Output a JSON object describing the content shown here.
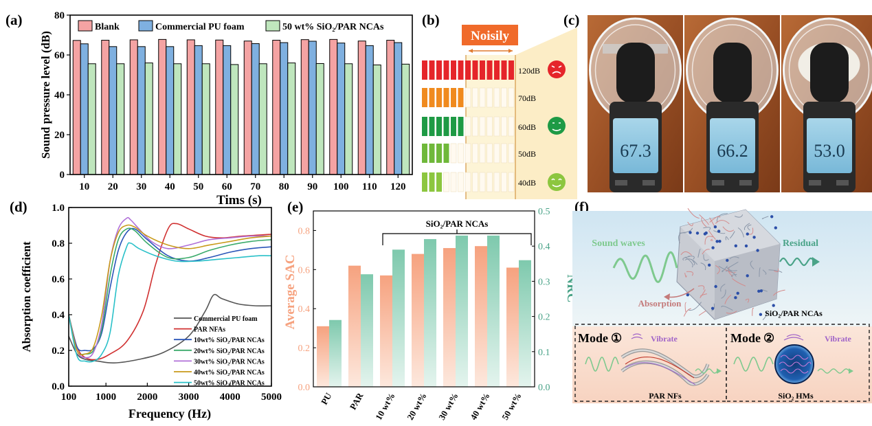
{
  "panel_labels": {
    "a": "(a)",
    "b": "(b)",
    "c": "(c)",
    "d": "(d)",
    "e": "(e)",
    "f": "(f)"
  },
  "colors": {
    "blank": "#f4a3a3",
    "pu": "#7fb0e0",
    "sio2": "#bfe6bd",
    "sac": "#f6a27f",
    "nrc": "#7ec9ad",
    "teal_axis": "#4aa388"
  },
  "chart_data": [
    {
      "id": "a",
      "type": "bar",
      "title": "",
      "xlabel": "Tims (s)",
      "ylabel": "Sound pressure level (dB)",
      "ylim": [
        0,
        80
      ],
      "yticks": [
        "0",
        "20",
        "40",
        "60",
        "80"
      ],
      "categories": [
        "10",
        "20",
        "30",
        "40",
        "50",
        "60",
        "70",
        "80",
        "90",
        "100",
        "110",
        "120"
      ],
      "legend": [
        "Blank",
        "Commercial PU foam",
        "50 wt% SiO₂/PAR NCAs"
      ],
      "series": [
        {
          "name": "Blank",
          "values": [
            67.3,
            67.4,
            67.6,
            67.8,
            67.6,
            67.5,
            67.0,
            67.4,
            67.7,
            67.8,
            67.0,
            67.4
          ]
        },
        {
          "name": "Commercial PU foam",
          "values": [
            65.6,
            64.2,
            64.2,
            64.2,
            64.7,
            64.7,
            65.7,
            66.2,
            66.9,
            66.0,
            64.7,
            66.2
          ]
        },
        {
          "name": "50 wt% SiO₂/PAR NCAs",
          "values": [
            55.6,
            55.6,
            56.0,
            55.6,
            55.6,
            55.2,
            55.6,
            56.0,
            55.7,
            55.6,
            55.0,
            55.4
          ]
        }
      ]
    },
    {
      "id": "d",
      "type": "line",
      "xlabel": "Frequency (Hz)",
      "ylabel": "Absorption coefficient",
      "xlim": [
        100,
        5000
      ],
      "ylim": [
        0.0,
        1.0
      ],
      "xticks": [
        "100",
        "1000",
        "2000",
        "3000",
        "4000",
        "5000"
      ],
      "yticks": [
        "0.0",
        "0.2",
        "0.4",
        "0.6",
        "0.8",
        "1.0"
      ],
      "legend": [
        "Commercial PU foam",
        "PAR NFAs",
        "10wt% SiO₂/PAR NCAs",
        "20wt% SiO₂/PAR NCAs",
        "30wt% SiO₂/PAR NCAs",
        "40wt% SiO₂/PAR NCAs",
        "50wt% SiO₂/PAR NCAs"
      ],
      "series": [
        {
          "name": "Commercial PU foam",
          "color": "#555555",
          "x": [
            100,
            300,
            500,
            800,
            1200,
            1800,
            2400,
            3000,
            3400,
            3600,
            3800,
            4200,
            4600,
            5000
          ],
          "y": [
            0.28,
            0.18,
            0.15,
            0.14,
            0.13,
            0.15,
            0.19,
            0.28,
            0.42,
            0.51,
            0.49,
            0.46,
            0.45,
            0.45
          ]
        },
        {
          "name": "PAR NFAs",
          "color": "#d03030",
          "x": [
            100,
            300,
            500,
            800,
            1100,
            1500,
            1900,
            2200,
            2500,
            2700,
            3000,
            3400,
            3800,
            4300,
            5000
          ],
          "y": [
            0.4,
            0.22,
            0.16,
            0.15,
            0.18,
            0.25,
            0.42,
            0.68,
            0.88,
            0.91,
            0.88,
            0.84,
            0.83,
            0.84,
            0.85
          ]
        },
        {
          "name": "10wt% SiO₂/PAR NCAs",
          "color": "#2a55b8",
          "x": [
            100,
            300,
            500,
            700,
            900,
            1100,
            1300,
            1500,
            1700,
            2000,
            2500,
            3000,
            3500,
            4000,
            4500,
            5000
          ],
          "y": [
            0.4,
            0.22,
            0.2,
            0.21,
            0.3,
            0.55,
            0.76,
            0.86,
            0.88,
            0.82,
            0.73,
            0.7,
            0.72,
            0.75,
            0.77,
            0.78
          ]
        },
        {
          "name": "20wt% SiO₂/PAR NCAs",
          "color": "#3aaa6a",
          "x": [
            100,
            300,
            500,
            700,
            900,
            1100,
            1300,
            1500,
            1700,
            2000,
            2500,
            3000,
            3500,
            4000,
            4500,
            5000
          ],
          "y": [
            0.4,
            0.2,
            0.18,
            0.2,
            0.32,
            0.62,
            0.82,
            0.88,
            0.87,
            0.8,
            0.72,
            0.72,
            0.76,
            0.79,
            0.81,
            0.82
          ]
        },
        {
          "name": "30wt% SiO₂/PAR NCAs",
          "color": "#b070d8",
          "x": [
            100,
            300,
            500,
            700,
            900,
            1100,
            1300,
            1500,
            1600,
            1800,
            2100,
            2500,
            3000,
            3500,
            4000,
            4500,
            5000
          ],
          "y": [
            0.4,
            0.2,
            0.16,
            0.19,
            0.35,
            0.7,
            0.88,
            0.94,
            0.93,
            0.88,
            0.81,
            0.77,
            0.79,
            0.82,
            0.83,
            0.84,
            0.84
          ]
        },
        {
          "name": "40wt% SiO₂/PAR NCAs",
          "color": "#c89a1a",
          "x": [
            100,
            300,
            500,
            700,
            900,
            1100,
            1300,
            1500,
            1700,
            2000,
            2500,
            3000,
            3500,
            4000,
            4500,
            5000
          ],
          "y": [
            0.4,
            0.2,
            0.18,
            0.22,
            0.4,
            0.7,
            0.86,
            0.9,
            0.89,
            0.84,
            0.79,
            0.77,
            0.79,
            0.81,
            0.83,
            0.84
          ]
        },
        {
          "name": "50wt% SiO₂/PAR NCAs",
          "color": "#28c0c8",
          "x": [
            100,
            300,
            500,
            700,
            900,
            1100,
            1300,
            1500,
            1600,
            1800,
            2200,
            2700,
            3200,
            3700,
            4200,
            4700,
            5000
          ],
          "y": [
            0.4,
            0.17,
            0.14,
            0.14,
            0.18,
            0.3,
            0.62,
            0.78,
            0.8,
            0.77,
            0.73,
            0.7,
            0.7,
            0.71,
            0.72,
            0.73,
            0.73
          ]
        }
      ]
    },
    {
      "id": "e",
      "type": "bar",
      "xlabel": "",
      "ylabel_left": "Average SAC",
      "ylabel_right": "NRC",
      "ylim_left": [
        0.0,
        0.9
      ],
      "ylim_right": [
        0.0,
        0.5
      ],
      "yticks_left": [
        "0.0",
        "0.2",
        "0.4",
        "0.6",
        "0.8"
      ],
      "yticks_right": [
        "0.0",
        "0.1",
        "0.2",
        "0.3",
        "0.4",
        "0.5"
      ],
      "categories": [
        "PU",
        "PAR",
        "10 wt%",
        "20 wt%",
        "30 wt%",
        "40 wt%",
        "50 wt%"
      ],
      "annotation": "SiO₂/PAR NCAs",
      "series": [
        {
          "name": "Average SAC",
          "axis": "left",
          "values": [
            0.31,
            0.62,
            0.57,
            0.68,
            0.71,
            0.72,
            0.61
          ]
        },
        {
          "name": "NRC",
          "axis": "right",
          "values": [
            0.19,
            0.32,
            0.39,
            0.42,
            0.43,
            0.43,
            0.36
          ]
        }
      ]
    }
  ],
  "panel_b": {
    "title": "Noisily",
    "levels": [
      {
        "label": "120dB",
        "bars": 13,
        "color": "#e5252a"
      },
      {
        "label": "70dB",
        "bars": 6,
        "color": "#f08a1e"
      },
      {
        "label": "60dB",
        "bars": 6,
        "color": "#1e9a45"
      },
      {
        "label": "50dB",
        "bars": 4,
        "color": "#6fb83a"
      },
      {
        "label": "40dB",
        "bars": 3,
        "color": "#8cc63f"
      }
    ]
  },
  "panel_c": {
    "readings": [
      "67.3",
      "66.2",
      "53.0"
    ]
  },
  "panel_f": {
    "sound_waves": "Sound waves",
    "residual": "Residual",
    "absorption": "Absorption",
    "material": "SiO₂/PAR NCAs",
    "mode1": "Mode",
    "mode1_num": "①",
    "mode2": "Mode",
    "mode2_num": "②",
    "vibrate1": "Vibrate",
    "vibrate2": "Vibrate",
    "mode1_caption": "PAR NFs",
    "mode2_caption": "SiO₂ HMs"
  }
}
